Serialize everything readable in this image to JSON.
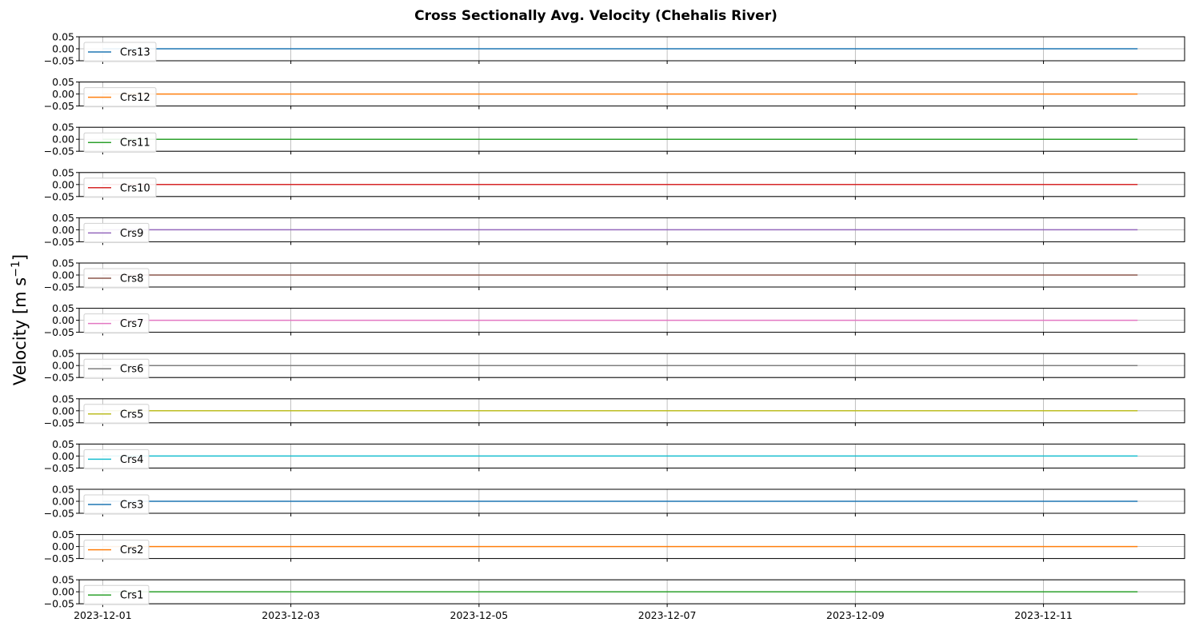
{
  "chart_data": {
    "type": "line",
    "title": "Cross Sectionally Avg. Velocity (Chehalis River)",
    "ylabel_main": "Velocity [m s",
    "ylabel_sup": "−1",
    "ylabel_end": "]",
    "xlabel": "",
    "x_range": [
      "2023-11-30T18:00",
      "2023-12-12T12:00"
    ],
    "x_ticks": [
      "2023-12-01",
      "2023-12-03",
      "2023-12-05",
      "2023-12-07",
      "2023-12-09",
      "2023-12-11"
    ],
    "x": [
      "2023-12-01",
      "2023-12-12"
    ],
    "ylim": [
      -0.05,
      0.05
    ],
    "y_ticks": [
      "0.05",
      "0.00",
      "−0.05"
    ],
    "y_tick_values": [
      0.05,
      0.0,
      -0.05
    ],
    "grid": true,
    "legend_placement": "center-left",
    "series": [
      {
        "name": "Crs13",
        "color": "#1f77b4",
        "values": [
          0.0,
          0.0
        ]
      },
      {
        "name": "Crs12",
        "color": "#ff7f0e",
        "values": [
          0.0,
          0.0
        ]
      },
      {
        "name": "Crs11",
        "color": "#2ca02c",
        "values": [
          0.0,
          0.0
        ]
      },
      {
        "name": "Crs10",
        "color": "#d62728",
        "values": [
          0.0,
          0.0
        ]
      },
      {
        "name": "Crs9",
        "color": "#9467bd",
        "values": [
          0.0,
          0.0
        ]
      },
      {
        "name": "Crs8",
        "color": "#8c564b",
        "values": [
          0.0,
          0.0
        ]
      },
      {
        "name": "Crs7",
        "color": "#e377c2",
        "values": [
          0.0,
          0.0
        ]
      },
      {
        "name": "Crs6",
        "color": "#7f7f7f",
        "values": [
          0.0,
          0.0
        ]
      },
      {
        "name": "Crs5",
        "color": "#bcbd22",
        "values": [
          0.0,
          0.0
        ]
      },
      {
        "name": "Crs4",
        "color": "#17becf",
        "values": [
          0.0,
          0.0
        ]
      },
      {
        "name": "Crs3",
        "color": "#1f77b4",
        "values": [
          0.0,
          0.0
        ]
      },
      {
        "name": "Crs2",
        "color": "#ff7f0e",
        "values": [
          0.0,
          0.0
        ]
      },
      {
        "name": "Crs1",
        "color": "#2ca02c",
        "values": [
          0.0,
          0.0
        ]
      }
    ]
  }
}
